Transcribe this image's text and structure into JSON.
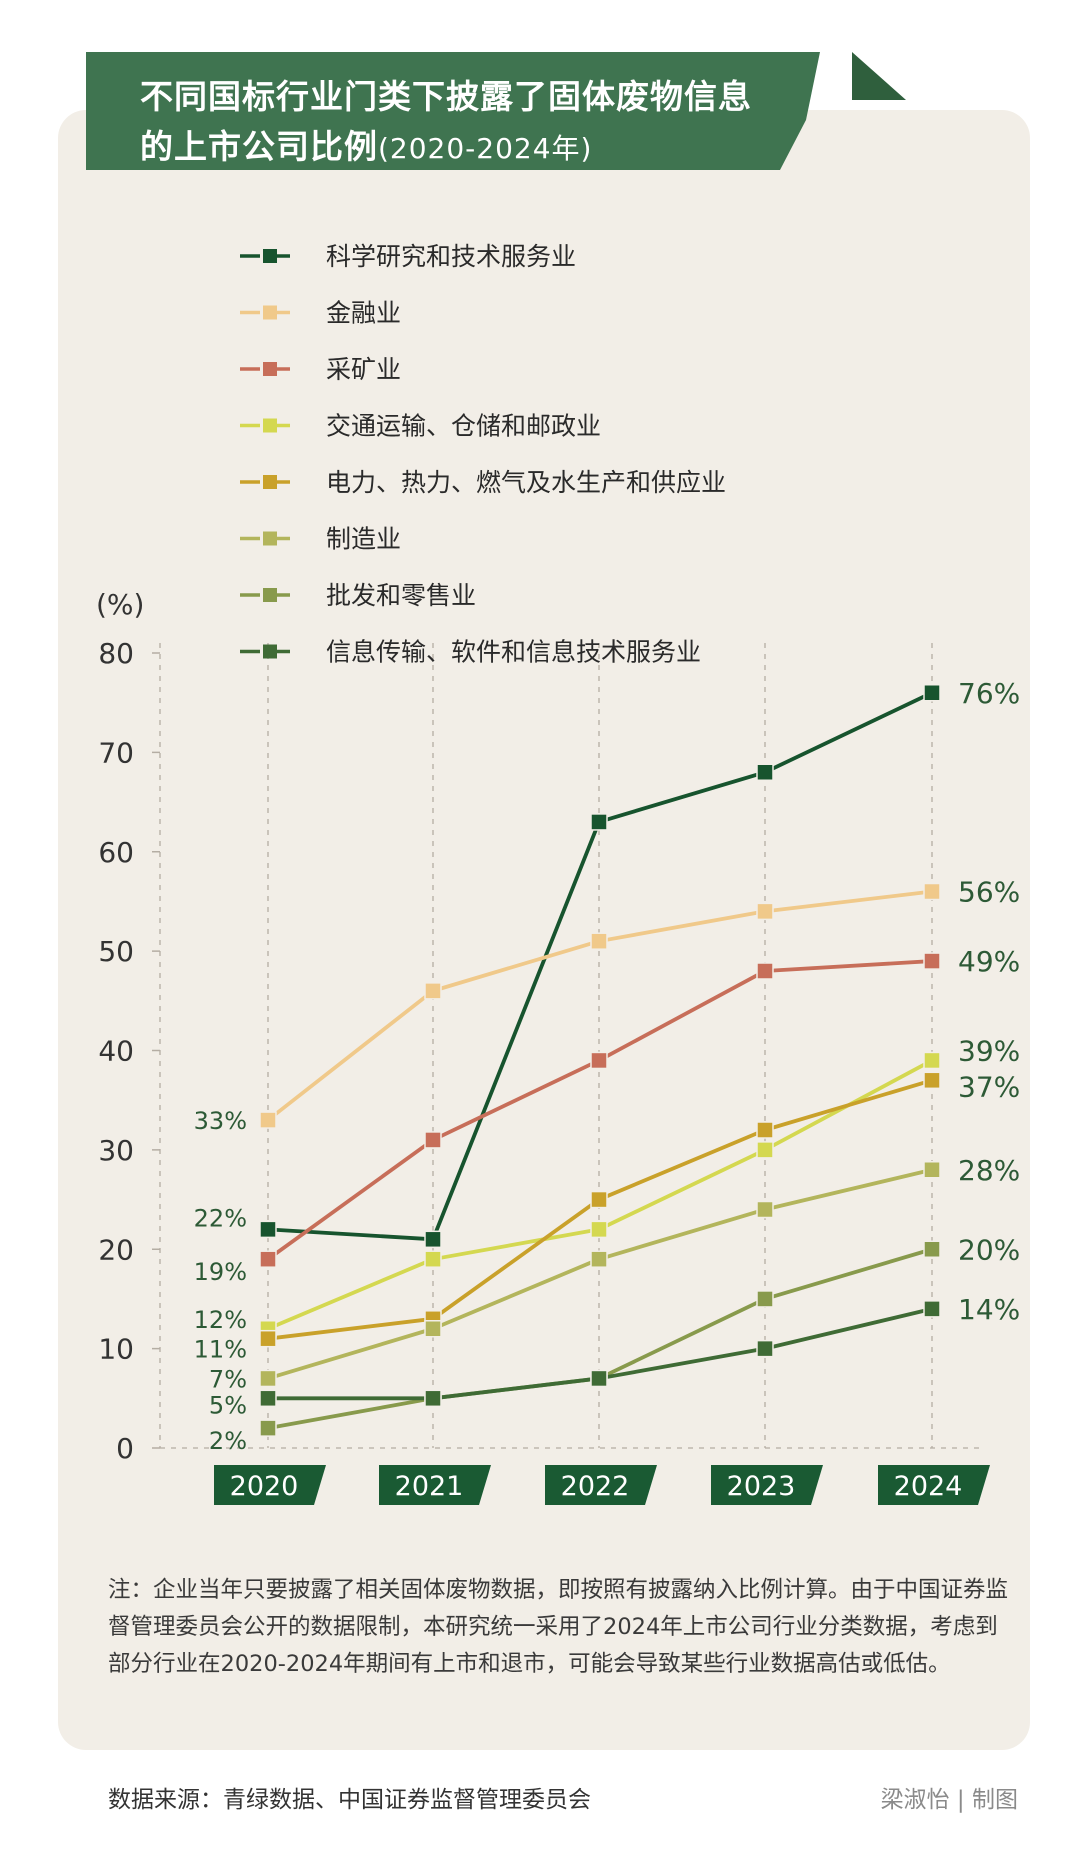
{
  "title": {
    "line1": "不同国标行业门类下披露了固体废物信息",
    "line2": "的上市公司比例",
    "sub": "(2020-2024年)"
  },
  "chart_data": {
    "type": "line",
    "ylabel": "(%)",
    "ylim": [
      0,
      80
    ],
    "yticks": [
      0,
      10,
      20,
      30,
      40,
      50,
      60,
      70,
      80
    ],
    "x": [
      "2020",
      "2021",
      "2022",
      "2023",
      "2024"
    ],
    "legend_position": "top-left",
    "series": [
      {
        "name": "科学研究和技术服务业",
        "color": "#17542e",
        "values": [
          22,
          21,
          63,
          68,
          76
        ],
        "start_label": "22%",
        "end_label": "76%"
      },
      {
        "name": "金融业",
        "color": "#f0c98a",
        "values": [
          33,
          46,
          51,
          54,
          56
        ],
        "start_label": "33%",
        "end_label": "56%"
      },
      {
        "name": "采矿业",
        "color": "#c76e59",
        "values": [
          19,
          31,
          39,
          48,
          49
        ],
        "start_label": "19%",
        "end_label": "49%"
      },
      {
        "name": "交通运输、仓储和邮政业",
        "color": "#d4d850",
        "values": [
          12,
          19,
          22,
          30,
          39
        ],
        "start_label": "12%",
        "end_label": "39%"
      },
      {
        "name": "电力、热力、燃气及水生产和供应业",
        "color": "#c9a12a",
        "values": [
          11,
          13,
          25,
          32,
          37
        ],
        "start_label": "11%",
        "end_label": "37%"
      },
      {
        "name": "制造业",
        "color": "#b3b55c",
        "values": [
          7,
          12,
          19,
          24,
          28
        ],
        "start_label": "7%",
        "end_label": "28%"
      },
      {
        "name": "批发和零售业",
        "color": "#889a4c",
        "values": [
          2,
          5,
          7,
          15,
          20
        ],
        "start_label": "2%",
        "end_label": "20%"
      },
      {
        "name": "信息传输、软件和信息技术服务业",
        "color": "#3f6b35",
        "values": [
          5,
          5,
          7,
          10,
          14
        ],
        "start_label": "5%",
        "end_label": "14%"
      }
    ]
  },
  "note": "注：企业当年只要披露了相关固体废物数据，即按照有披露纳入比例计算。由于中国证券监督管理委员会公开的数据限制，本研究统一采用了2024年上市公司行业分类数据，考虑到部分行业在2020-2024年期间有上市和退市，可能会导致某些行业数据高估或低估。",
  "source": "数据来源：青绿数据、中国证券监督管理委员会",
  "credit": "梁淑怡 | 制图",
  "colors": {
    "banner": "#3f7450",
    "card": "#f2eee7",
    "label_text": "#2d5a36",
    "axis": "#b4ada3"
  }
}
